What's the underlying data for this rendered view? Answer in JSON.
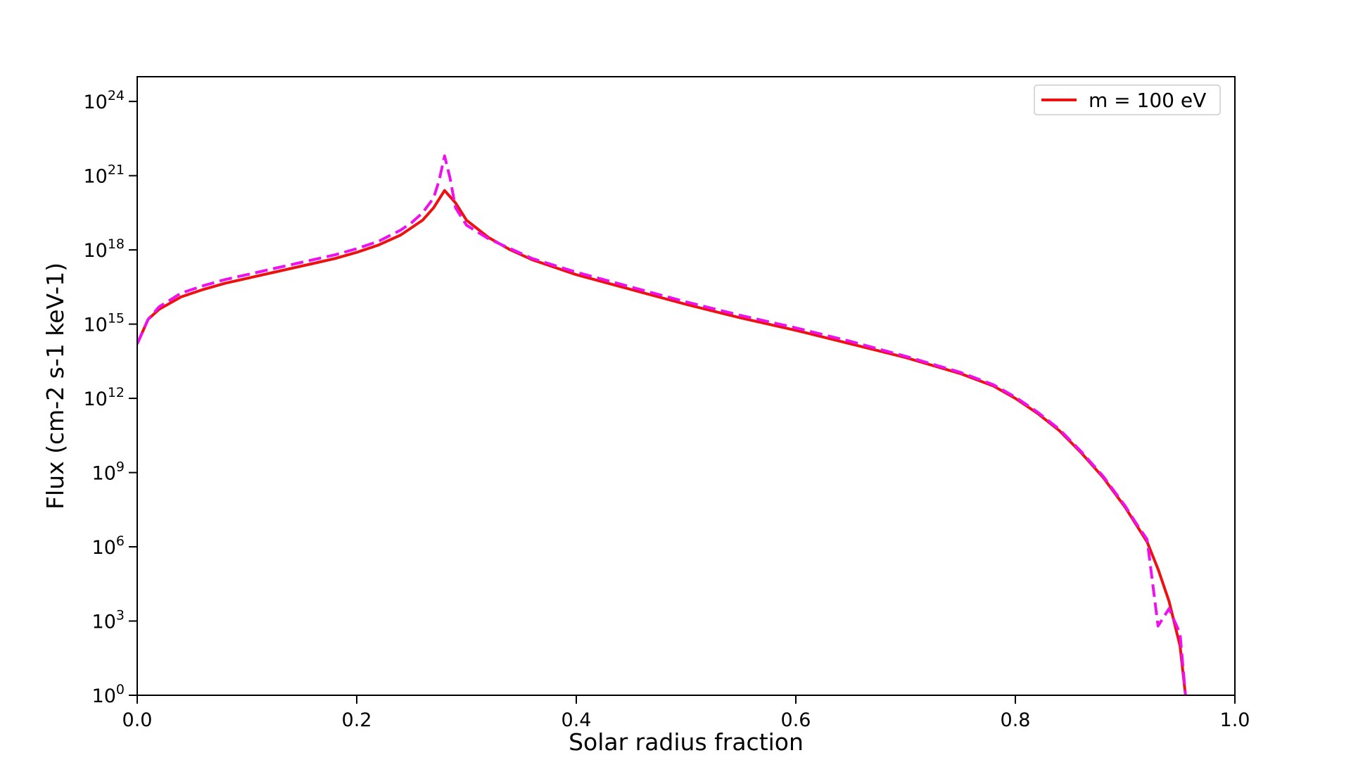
{
  "chart_data": {
    "type": "line",
    "title": "",
    "xlabel": "Solar radius fraction",
    "ylabel": "Flux (cm-2 s-1 keV-1)",
    "xlim": [
      0.0,
      1.0
    ],
    "ylim_log10": [
      0,
      25
    ],
    "y_scale": "log",
    "x_ticks": [
      0.0,
      0.2,
      0.4,
      0.6,
      0.8,
      1.0
    ],
    "x_tick_labels": [
      "0.0",
      "0.2",
      "0.4",
      "0.6",
      "0.8",
      "1.0"
    ],
    "y_ticks_log10": [
      0,
      3,
      6,
      9,
      12,
      15,
      18,
      21,
      24
    ],
    "y_tick_base": "10",
    "y_tick_exponents": [
      "0",
      "3",
      "6",
      "9",
      "12",
      "15",
      "18",
      "21",
      "24"
    ],
    "grid": false,
    "legend_position": "top-right",
    "series": [
      {
        "name": "m = 100 eV",
        "color": "#ee1111",
        "style": "solid",
        "in_legend": true,
        "x": [
          0.0,
          0.01,
          0.02,
          0.04,
          0.06,
          0.08,
          0.1,
          0.12,
          0.14,
          0.16,
          0.18,
          0.2,
          0.22,
          0.24,
          0.25,
          0.26,
          0.27,
          0.28,
          0.29,
          0.3,
          0.32,
          0.34,
          0.36,
          0.4,
          0.45,
          0.5,
          0.55,
          0.6,
          0.65,
          0.7,
          0.75,
          0.78,
          0.8,
          0.82,
          0.84,
          0.86,
          0.88,
          0.9,
          0.91,
          0.92,
          0.93,
          0.94,
          0.95,
          0.955
        ],
        "log10_y": [
          14.2,
          15.2,
          15.6,
          16.1,
          16.4,
          16.65,
          16.85,
          17.05,
          17.25,
          17.45,
          17.65,
          17.9,
          18.2,
          18.6,
          18.9,
          19.2,
          19.7,
          20.4,
          19.9,
          19.2,
          18.5,
          18.0,
          17.6,
          17.0,
          16.4,
          15.8,
          15.25,
          14.75,
          14.2,
          13.65,
          13.0,
          12.5,
          12.0,
          11.4,
          10.7,
          9.8,
          8.8,
          7.6,
          6.9,
          6.2,
          5.1,
          3.8,
          2.0,
          0.0
        ]
      },
      {
        "name": "",
        "color": "#ee11ee",
        "style": "dashed",
        "in_legend": false,
        "x": [
          0.0,
          0.01,
          0.02,
          0.04,
          0.06,
          0.08,
          0.1,
          0.12,
          0.14,
          0.16,
          0.18,
          0.2,
          0.22,
          0.24,
          0.25,
          0.26,
          0.27,
          0.275,
          0.28,
          0.285,
          0.29,
          0.3,
          0.32,
          0.34,
          0.36,
          0.4,
          0.45,
          0.5,
          0.55,
          0.6,
          0.65,
          0.7,
          0.75,
          0.78,
          0.8,
          0.82,
          0.84,
          0.86,
          0.88,
          0.9,
          0.91,
          0.92,
          0.93,
          0.94,
          0.95,
          0.955
        ],
        "log10_y": [
          14.2,
          15.2,
          15.7,
          16.25,
          16.55,
          16.8,
          17.0,
          17.2,
          17.4,
          17.6,
          17.8,
          18.05,
          18.35,
          18.8,
          19.1,
          19.5,
          20.1,
          20.8,
          21.8,
          20.9,
          19.7,
          19.0,
          18.45,
          18.05,
          17.65,
          17.1,
          16.5,
          15.9,
          15.35,
          14.85,
          14.3,
          13.7,
          13.05,
          12.55,
          12.05,
          11.45,
          10.75,
          9.85,
          8.85,
          7.65,
          6.95,
          6.3,
          2.8,
          3.5,
          2.5,
          0.0
        ]
      }
    ]
  }
}
